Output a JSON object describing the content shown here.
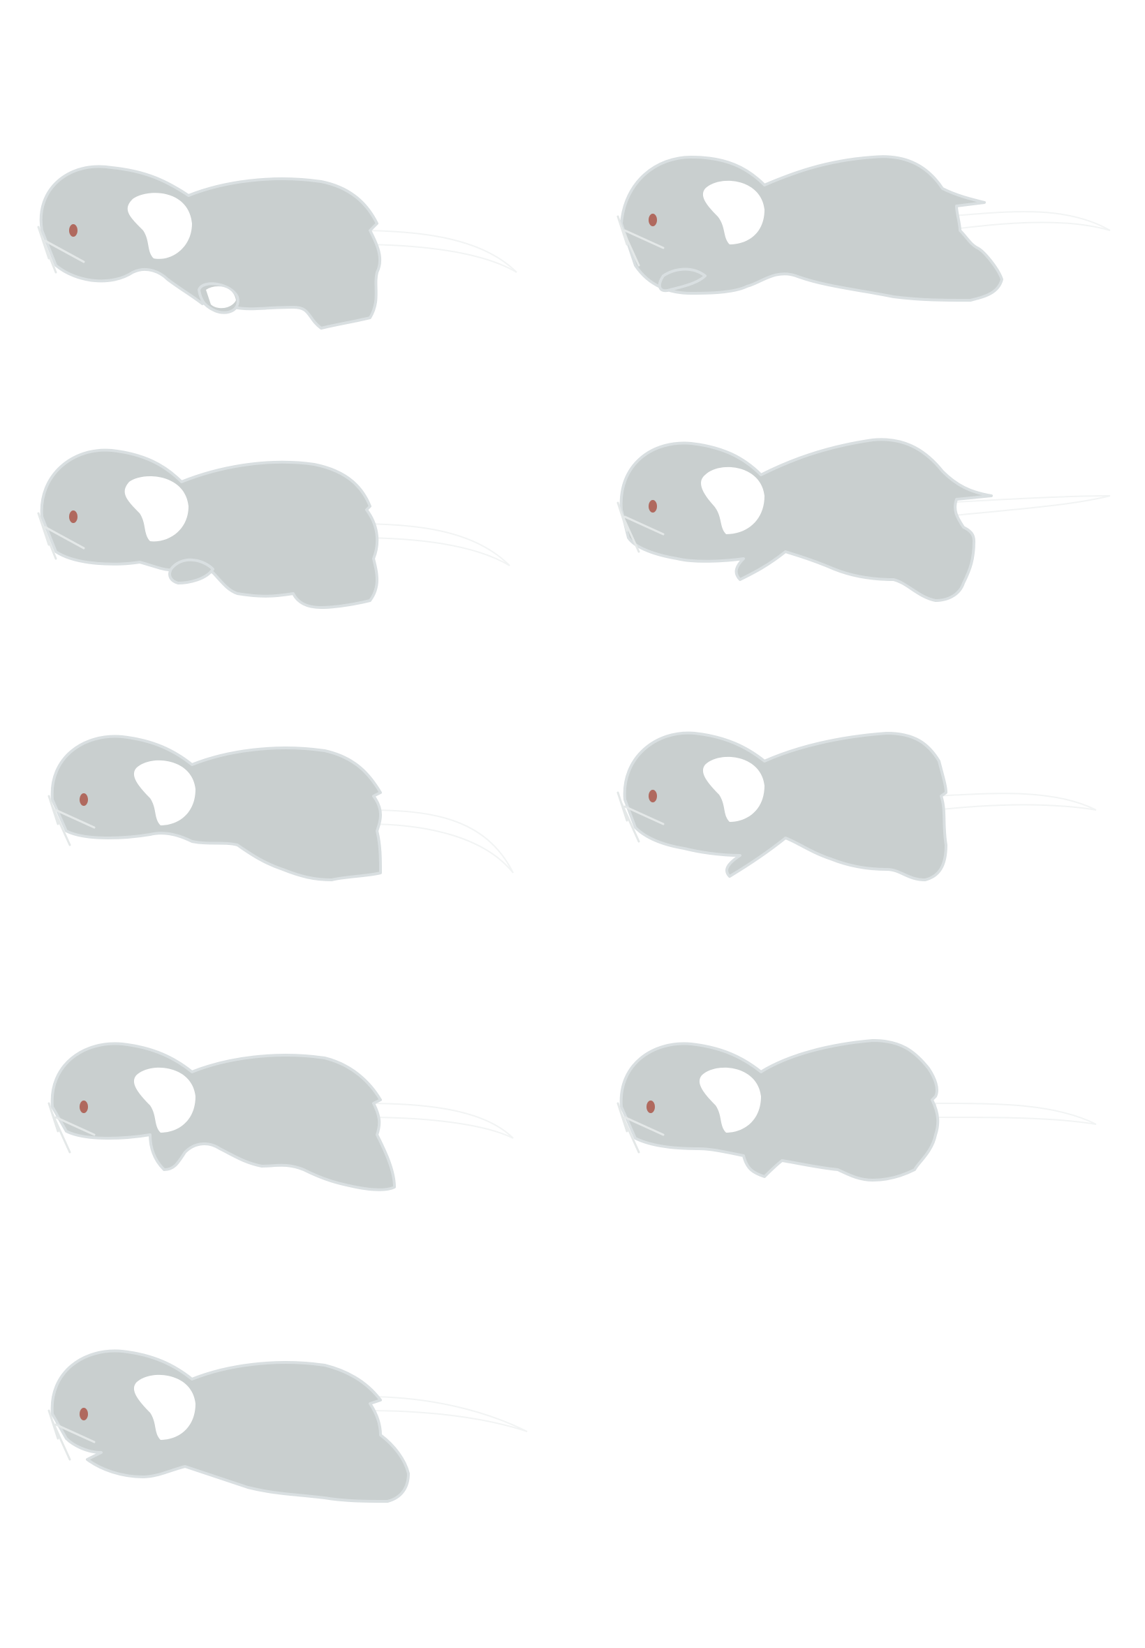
{
  "sprite_sheet": {
    "frame_count": 9,
    "columns": 2,
    "colors": {
      "background": "#ffffff",
      "body": "#c9cfcf",
      "outline": "#d9dfe1",
      "ear_inner": "#ffffff",
      "eye": "#b0695e",
      "tail": "#ffffff",
      "whisker": "#e4e8e8"
    },
    "frames": [
      {
        "pose": "run-1",
        "icon": "mouse-sprite"
      },
      {
        "pose": "run-2",
        "icon": "mouse-sprite"
      },
      {
        "pose": "run-3",
        "icon": "mouse-sprite"
      },
      {
        "pose": "run-4",
        "icon": "mouse-sprite"
      },
      {
        "pose": "run-5",
        "icon": "mouse-sprite"
      },
      {
        "pose": "run-6",
        "icon": "mouse-sprite"
      },
      {
        "pose": "run-7",
        "icon": "mouse-sprite"
      },
      {
        "pose": "run-8",
        "icon": "mouse-sprite"
      },
      {
        "pose": "run-9",
        "icon": "mouse-sprite"
      }
    ]
  }
}
